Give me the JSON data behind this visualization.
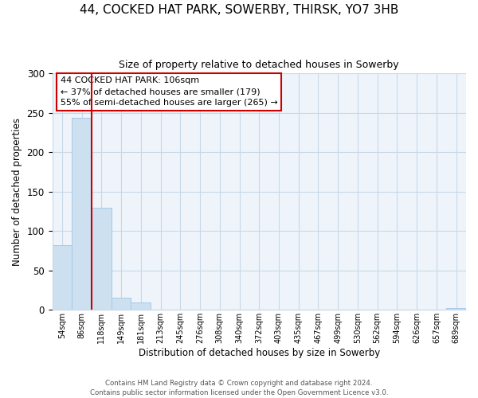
{
  "title": "44, COCKED HAT PARK, SOWERBY, THIRSK, YO7 3HB",
  "subtitle": "Size of property relative to detached houses in Sowerby",
  "xlabel": "Distribution of detached houses by size in Sowerby",
  "ylabel": "Number of detached properties",
  "bar_color": "#cce0f0",
  "bar_edge_color": "#a8c8e8",
  "background_color": "#ffffff",
  "plot_bg_color": "#eef4fa",
  "grid_color": "#c8d8e8",
  "categories": [
    "54sqm",
    "86sqm",
    "118sqm",
    "149sqm",
    "181sqm",
    "213sqm",
    "245sqm",
    "276sqm",
    "308sqm",
    "340sqm",
    "372sqm",
    "403sqm",
    "435sqm",
    "467sqm",
    "499sqm",
    "530sqm",
    "562sqm",
    "594sqm",
    "626sqm",
    "657sqm",
    "689sqm"
  ],
  "values": [
    82,
    243,
    129,
    15,
    9,
    0,
    0,
    0,
    0,
    0,
    0,
    0,
    0,
    0,
    0,
    0,
    0,
    0,
    0,
    0,
    2
  ],
  "ylim": [
    0,
    300
  ],
  "yticks": [
    0,
    50,
    100,
    150,
    200,
    250,
    300
  ],
  "vline_x": 1.5,
  "vline_color": "#cc0000",
  "annotation_title": "44 COCKED HAT PARK: 106sqm",
  "annotation_line1": "← 37% of detached houses are smaller (179)",
  "annotation_line2": "55% of semi-detached houses are larger (265) →",
  "annotation_box_color": "#ffffff",
  "annotation_box_edge": "#cc0000",
  "title_fontsize": 11,
  "subtitle_fontsize": 9,
  "footer1": "Contains HM Land Registry data © Crown copyright and database right 2024.",
  "footer2": "Contains public sector information licensed under the Open Government Licence v3.0."
}
